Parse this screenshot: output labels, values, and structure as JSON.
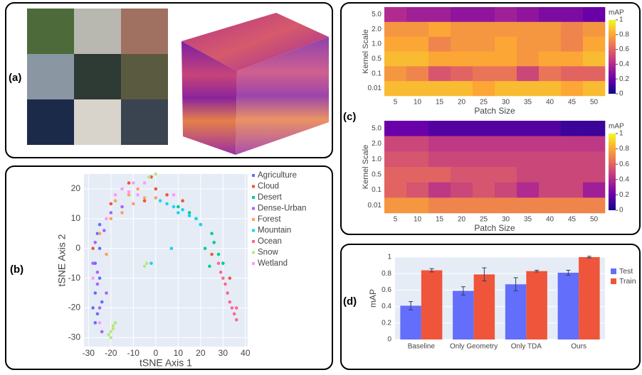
{
  "panel_labels": [
    "(a)",
    "(b)",
    "(c)",
    "(d)"
  ],
  "chart_data": [
    {
      "type": "scatter",
      "x_label": "tSNE Axis 1",
      "y_label": "tSNE Axis 2",
      "xlim": [
        -32,
        41
      ],
      "ylim": [
        -33,
        25
      ],
      "xticks": [
        -30,
        -20,
        -10,
        0,
        10,
        20,
        30,
        40
      ],
      "yticks": [
        -30,
        -20,
        -10,
        0,
        10,
        20
      ],
      "grid": true,
      "series": [
        {
          "name": "Agriculture",
          "color": "#636efa",
          "x": [
            -28,
            -27,
            -26,
            -25,
            -27,
            -25,
            -26,
            -24,
            -27,
            -25
          ],
          "values": [
            -20,
            -15,
            -22,
            -10,
            -5,
            0,
            5,
            -18,
            -25,
            8
          ]
        },
        {
          "name": "Cloud",
          "color": "#ef553b",
          "x": [
            -12,
            -2,
            5,
            -20,
            12,
            -5,
            25,
            33,
            -28,
            0
          ],
          "values": [
            22,
            24,
            18,
            15,
            16,
            16,
            -2,
            -10,
            0,
            20
          ]
        },
        {
          "name": "Desert",
          "color": "#00cc96",
          "x": [
            15,
            20,
            25,
            22,
            28,
            18,
            24,
            30,
            10,
            26
          ],
          "values": [
            12,
            8,
            5,
            0,
            -2,
            10,
            -6,
            -5,
            14,
            2
          ]
        },
        {
          "name": "Dense-Urban",
          "color": "#ab63fa",
          "x": [
            -28,
            -26,
            -25,
            -24,
            -27,
            -22,
            -23,
            -20,
            -15,
            -26
          ],
          "values": [
            -5,
            -12,
            -20,
            -28,
            2,
            -15,
            6,
            12,
            14,
            -8
          ]
        },
        {
          "name": "Forest",
          "color": "#ffa15a",
          "x": [
            -20,
            -18,
            -12,
            -10,
            -25,
            -15,
            -5,
            0,
            -22,
            -8
          ],
          "values": [
            10,
            16,
            18,
            15,
            5,
            12,
            17,
            17,
            -2,
            20
          ]
        },
        {
          "name": "Mountain",
          "color": "#19d3f3",
          "x": [
            2,
            8,
            12,
            5,
            15,
            20,
            -2,
            7,
            18,
            10
          ],
          "values": [
            16,
            14,
            13,
            15,
            11,
            8,
            -5,
            0,
            10,
            12
          ]
        },
        {
          "name": "Ocean",
          "color": "#ff6692",
          "x": [
            30,
            32,
            33,
            35,
            36,
            28,
            34,
            31,
            36,
            29
          ],
          "values": [
            -10,
            -15,
            -18,
            -22,
            -24,
            -5,
            -20,
            -12,
            -20,
            -8
          ]
        },
        {
          "name": "Snow",
          "color": "#b6e880",
          "x": [
            -20,
            -19,
            -18,
            -21,
            -19,
            -3,
            0,
            -5,
            -4,
            -20
          ],
          "values": [
            -30,
            -27,
            -25,
            -29,
            -26,
            24,
            25,
            -6,
            -5,
            -28
          ]
        },
        {
          "name": "Wetland",
          "color": "#ff97ff",
          "x": [
            -15,
            -10,
            -22,
            -18,
            -5,
            8,
            -8,
            -28,
            -25,
            -12
          ],
          "values": [
            20,
            22,
            10,
            18,
            22,
            18,
            18,
            -10,
            -25,
            19
          ]
        }
      ]
    },
    {
      "type": "heatmap",
      "x_label": "Patch Size",
      "y_label": "Kernel Scale",
      "colorbar_title": "mAP",
      "categories": [
        "5",
        "10",
        "15",
        "20",
        "25",
        "30",
        "35",
        "40",
        "45",
        "50"
      ],
      "rows": [
        "5.0",
        "2.0",
        "1.0",
        "0.5",
        "0.1",
        "0.01"
      ],
      "values": [
        [
          0.4,
          0.35,
          0.35,
          0.3,
          0.3,
          0.35,
          0.3,
          0.25,
          0.25,
          0.2
        ],
        [
          0.75,
          0.75,
          0.8,
          0.75,
          0.75,
          0.75,
          0.75,
          0.75,
          0.7,
          0.75
        ],
        [
          0.8,
          0.8,
          0.7,
          0.75,
          0.75,
          0.8,
          0.75,
          0.75,
          0.7,
          0.8
        ],
        [
          0.85,
          0.85,
          0.8,
          0.8,
          0.8,
          0.8,
          0.75,
          0.8,
          0.8,
          0.85
        ],
        [
          0.75,
          0.7,
          0.55,
          0.6,
          0.65,
          0.65,
          0.5,
          0.65,
          0.6,
          0.6
        ],
        [
          0.85,
          0.85,
          0.85,
          0.85,
          0.8,
          0.85,
          0.85,
          0.85,
          0.8,
          0.85
        ]
      ],
      "zlim": [
        0,
        1
      ],
      "zticks": [
        0,
        0.2,
        0.4,
        0.6,
        0.8,
        1
      ],
      "colorscale": [
        "#0d0887",
        "#6a00a8",
        "#b12a90",
        "#e16462",
        "#fca636",
        "#f0f921"
      ]
    },
    {
      "type": "heatmap",
      "x_label": "Patch Size",
      "y_label": "Kernel Scale",
      "colorbar_title": "mAP",
      "categories": [
        "5",
        "10",
        "15",
        "20",
        "25",
        "30",
        "35",
        "40",
        "45",
        "50"
      ],
      "rows": [
        "5.0",
        "2.0",
        "1.0",
        "0.5",
        "0.1",
        "0.01"
      ],
      "values": [
        [
          0.2,
          0.2,
          0.15,
          0.15,
          0.15,
          0.15,
          0.15,
          0.15,
          0.1,
          0.1
        ],
        [
          0.5,
          0.5,
          0.45,
          0.45,
          0.45,
          0.45,
          0.45,
          0.45,
          0.45,
          0.45
        ],
        [
          0.55,
          0.55,
          0.5,
          0.5,
          0.5,
          0.5,
          0.5,
          0.5,
          0.5,
          0.5
        ],
        [
          0.6,
          0.6,
          0.6,
          0.55,
          0.55,
          0.55,
          0.5,
          0.5,
          0.5,
          0.5
        ],
        [
          0.6,
          0.55,
          0.45,
          0.5,
          0.55,
          0.5,
          0.4,
          0.5,
          0.5,
          0.35
        ],
        [
          0.75,
          0.75,
          0.7,
          0.7,
          0.7,
          0.7,
          0.7,
          0.7,
          0.7,
          0.7
        ]
      ],
      "zlim": [
        0,
        1
      ],
      "zticks": [
        0,
        0.2,
        0.4,
        0.6,
        0.8,
        1
      ],
      "colorscale": [
        "#0d0887",
        "#6a00a8",
        "#b12a90",
        "#e16462",
        "#fca636",
        "#f0f921"
      ]
    },
    {
      "type": "bar",
      "y_label": "mAP",
      "categories": [
        "Baseline",
        "Only Geometry",
        "Only TDA",
        "Ours"
      ],
      "ylim": [
        0,
        1
      ],
      "yticks": [
        0,
        0.2,
        0.4,
        0.6,
        0.8,
        1
      ],
      "grid": true,
      "series": [
        {
          "name": "Test",
          "color": "#636efa",
          "values": [
            0.41,
            0.59,
            0.67,
            0.81
          ],
          "errors": [
            0.05,
            0.05,
            0.08,
            0.03
          ]
        },
        {
          "name": "Train",
          "color": "#ef553b",
          "values": [
            0.84,
            0.79,
            0.83,
            1.0
          ],
          "errors": [
            0.02,
            0.08,
            0.01,
            0.01
          ]
        }
      ]
    }
  ]
}
